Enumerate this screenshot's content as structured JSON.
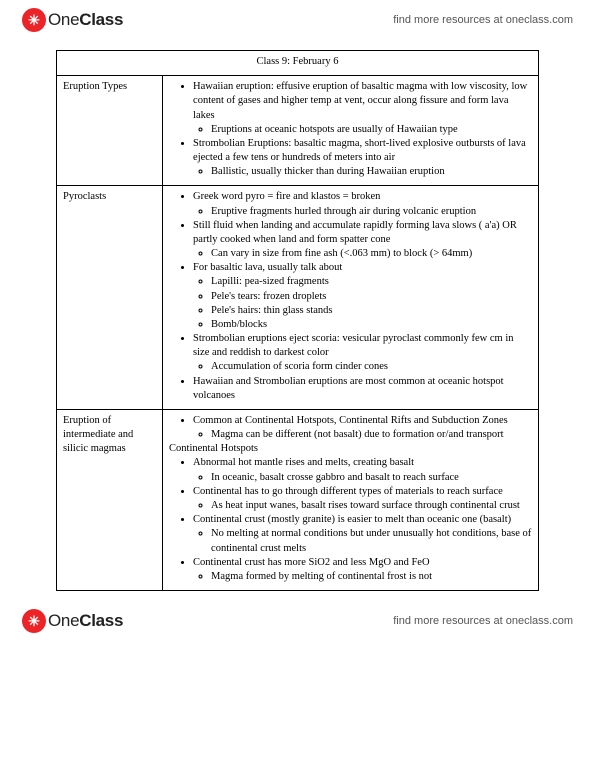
{
  "brand": {
    "one": "One",
    "class": "Class",
    "icon_glyph": "✳"
  },
  "header_link": "find more resources at oneclass.com",
  "footer_link": "find more resources at oneclass.com",
  "title": "Class 9: February 6",
  "rows": [
    {
      "label": "Eruption Types",
      "b1": [
        {
          "t": "Hawaiian eruption: effusive eruption of basaltic magma with low viscosity, low content of gases and higher temp at vent, occur along fissure and form lava lakes",
          "b2": [
            {
              "t": "Eruptions at oceanic hotspots are usually of Hawaiian type"
            }
          ]
        },
        {
          "t": "Strombolian Eruptions: basaltic magma, short-lived explosive outbursts of lava ejected a few tens or hundreds of meters into air",
          "b2": [
            {
              "t": "Ballistic, usually thicker than during Hawaiian eruption"
            }
          ]
        }
      ]
    },
    {
      "label": "Pyroclasts",
      "b1": [
        {
          "t": "Greek word pyro = fire and klastos = broken",
          "b2": [
            {
              "t": "Eruptive fragments hurled through air during volcanic eruption"
            }
          ]
        },
        {
          "t": "Still fluid when landing and accumulate rapidly forming lava slows ( a'a) OR partly cooked when land and form spatter cone",
          "b2": [
            {
              "t": "Can vary in size from fine ash (<.063 mm) to block (> 64mm)"
            }
          ]
        },
        {
          "t": "For basaltic lava, usually talk about",
          "b2": [
            {
              "t": "Lapilli: pea-sized fragments"
            },
            {
              "t": "Pele's tears: frozen droplets"
            },
            {
              "t": "Pele's hairs: thin glass stands"
            },
            {
              "t": "Bomb/blocks"
            }
          ]
        },
        {
          "t": "Strombolian eruptions eject scoria: vesicular pyroclast commonly few cm in size and reddish to darkest color",
          "b2": [
            {
              "t": "Accumulation of scoria form cinder cones"
            }
          ]
        },
        {
          "t": "Hawaiian and Strombolian eruptions are most common at oceanic hotspot volcanoes"
        }
      ]
    },
    {
      "label": "Eruption of intermediate and silicic magmas",
      "b1": [
        {
          "t": "Common at Continental Hotspots, Continental Rifts and Subduction Zones",
          "b2": [
            {
              "t": "Magma can be different (not basalt) due to formation or/and transport"
            }
          ]
        }
      ],
      "subhead": "Continental Hotspots",
      "b1b": [
        {
          "t": "Abnormal hot mantle rises and melts, creating basalt",
          "b2": [
            {
              "t": "In oceanic, basalt crosse gabbro and basalt to reach surface"
            }
          ]
        },
        {
          "t": "Continental has to go through different types of materials to reach surface",
          "b2": [
            {
              "t": "As heat input wanes, basalt rises toward surface through continental crust"
            }
          ]
        },
        {
          "t": "Continental crust (mostly granite) is easier to melt than oceanic one (basalt)",
          "b2": [
            {
              "t": "No melting at normal conditions but under unusually hot conditions, base of continental crust melts"
            }
          ]
        },
        {
          "t": "Continental crust has more SiO2 and less MgO and FeO",
          "b2": [
            {
              "t": "Magma formed by melting of continental frost is not"
            }
          ]
        }
      ]
    }
  ]
}
